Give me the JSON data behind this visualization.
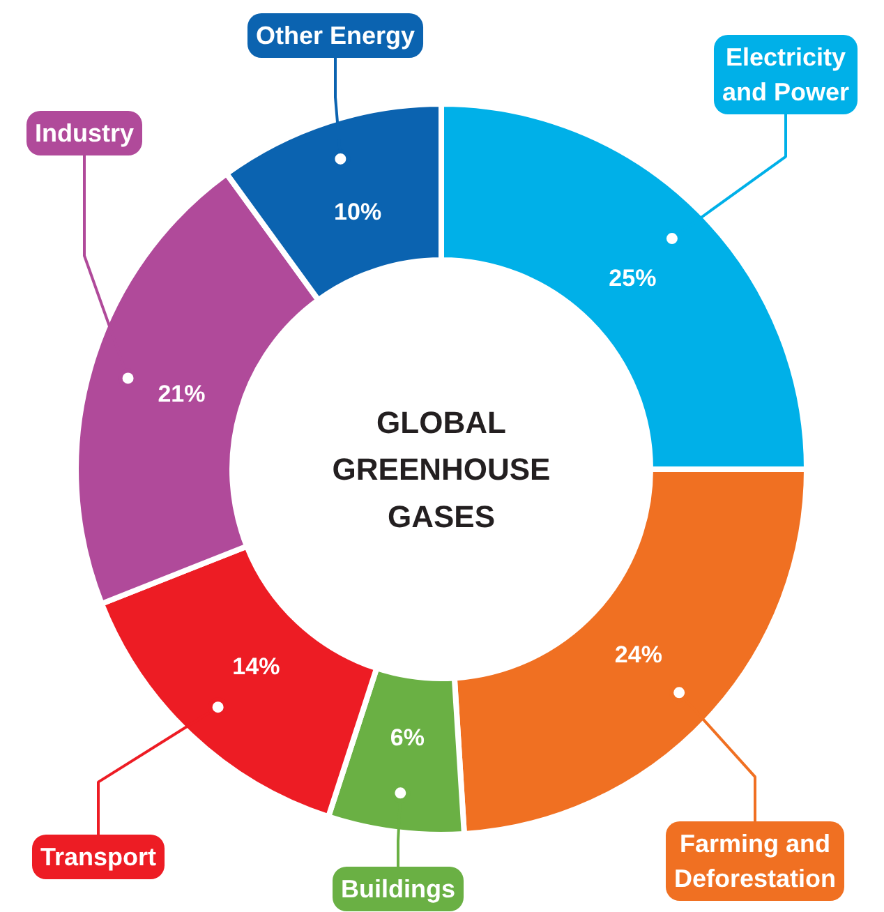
{
  "chart_data": {
    "type": "donut",
    "title": "GLOBAL GREENHOUSE GASES",
    "categories": [
      "Electricity and Power",
      "Farming and Deforestation",
      "Buildings",
      "Transport",
      "Industry",
      "Other Energy"
    ],
    "values": [
      25,
      24,
      6,
      14,
      21,
      10
    ],
    "colors": [
      "#00b0e8",
      "#f07022",
      "#6ab044",
      "#ed1c24",
      "#b04a9a",
      "#0b63b0"
    ],
    "value_labels": [
      "25%",
      "24%",
      "6%",
      "14%",
      "21%",
      "10%"
    ]
  }
}
